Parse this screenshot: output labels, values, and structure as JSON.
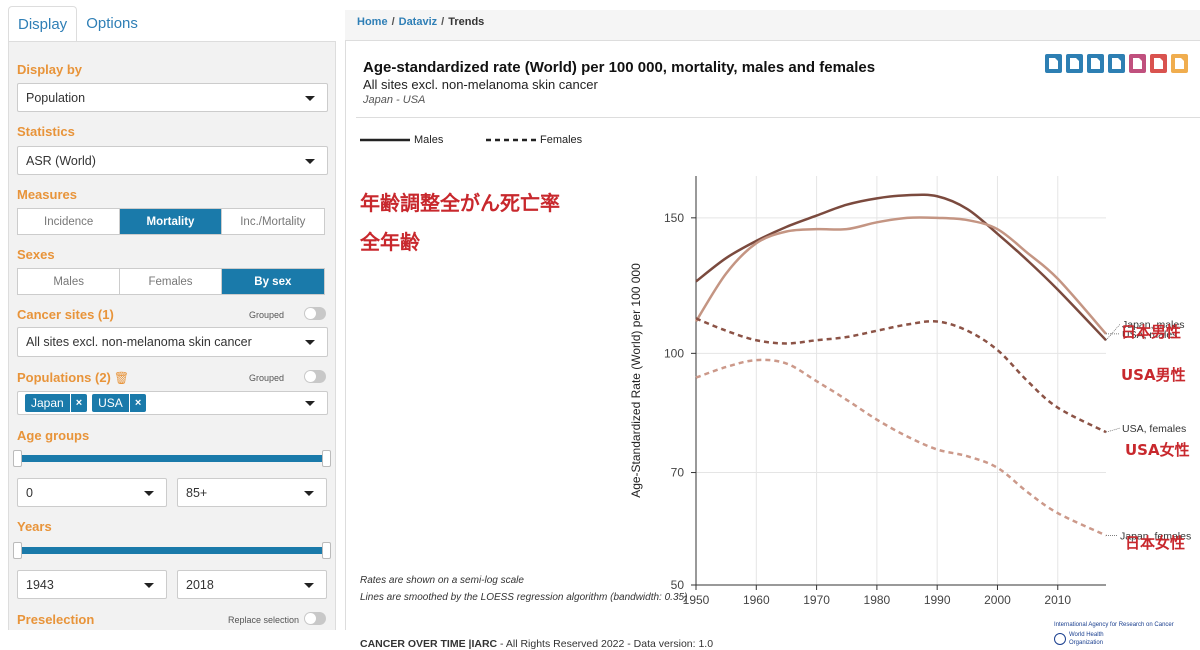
{
  "tabs": [
    {
      "label": "Display"
    },
    {
      "label": "Options"
    }
  ],
  "sidebar": {
    "display_by": {
      "label": "Display by",
      "value": "Population"
    },
    "statistics": {
      "label": "Statistics",
      "value": "ASR (World)"
    },
    "measures": {
      "label": "Measures",
      "options": [
        "Incidence",
        "Mortality",
        "Inc./Mortality"
      ],
      "selected": "Mortality"
    },
    "sexes": {
      "label": "Sexes",
      "options": [
        "Males",
        "Females",
        "By sex"
      ],
      "selected": "By sex"
    },
    "cancer_sites": {
      "label": "Cancer sites (1)",
      "grouped_label": "Grouped",
      "value": "All sites excl. non-melanoma skin cancer"
    },
    "populations": {
      "label": "Populations (2)",
      "grouped_label": "Grouped",
      "chips": [
        "Japan",
        "USA"
      ]
    },
    "age_groups": {
      "label": "Age groups",
      "from": "0",
      "to": "85+"
    },
    "years": {
      "label": "Years",
      "from": "1943",
      "to": "2018"
    },
    "preselection": {
      "label": "Preselection",
      "replace_label": "Replace selection"
    }
  },
  "breadcrumb": [
    "Home",
    "Dataviz",
    "Trends"
  ],
  "chart": {
    "title": "Age-standardized rate (World) per 100 000, mortality, males and females",
    "subtitle": "All sites excl. non-melanoma skin cancer",
    "region": "Japan - USA",
    "legend": [
      {
        "label": "Males",
        "style": "solid"
      },
      {
        "label": "Females",
        "style": "dashed"
      }
    ],
    "overlay_jp": [
      "年齢調整全がん死亡率",
      "全年齢"
    ],
    "annotations_jp": [
      "日本男性",
      "USA男性",
      "USA女性",
      "日本女性"
    ],
    "notes": [
      "Rates are shown on a semi-log scale",
      "Lines are smoothed by the LOESS regression algorithm (bandwidth: 0.35)"
    ],
    "footer_bold": "CANCER OVER TIME |IARC",
    "footer_rest": " - All Rights Reserved 2022 - Data version: 1.0",
    "iarc_label": "International Agency for Research on Cancer",
    "who_label": "World Health Organization",
    "icons": [
      {
        "name": "png-export-icon",
        "color": "#2d7fb3"
      },
      {
        "name": "pdf-export-icon",
        "color": "#2d7fb3"
      },
      {
        "name": "svg-export-icon",
        "color": "#2d7fb3"
      },
      {
        "name": "html5-export-icon",
        "color": "#2d7fb3"
      },
      {
        "name": "csv-export-icon",
        "color": "#c0507e"
      },
      {
        "name": "excel-export-icon",
        "color": "#d9534f"
      },
      {
        "name": "link-icon",
        "color": "#f0ad4e"
      }
    ]
  },
  "chart_data": {
    "type": "line",
    "ylabel": "Age-Standardized Rate (World) per 100 000",
    "y_scale": "log",
    "ylim": [
      50,
      170
    ],
    "yticks": [
      50,
      70,
      100,
      150
    ],
    "xlim": [
      1950,
      2018
    ],
    "xticks": [
      1950,
      1960,
      1970,
      1980,
      1990,
      2000,
      2010
    ],
    "grid": true,
    "series": [
      {
        "name": "Japan, males",
        "style": "solid",
        "color": "#7b4a3e",
        "x": [
          1950,
          1955,
          1960,
          1965,
          1970,
          1975,
          1980,
          1985,
          1990,
          1995,
          2000,
          2005,
          2010,
          2018
        ],
        "y": [
          124,
          133,
          140,
          146,
          151,
          156,
          159,
          160.5,
          160,
          154,
          143,
          132,
          121,
          104
        ]
      },
      {
        "name": "USA, males",
        "style": "solid",
        "color": "#c49583",
        "x": [
          1950,
          1955,
          1960,
          1965,
          1970,
          1975,
          1980,
          1985,
          1990,
          1995,
          2000,
          2005,
          2010,
          2018
        ],
        "y": [
          110,
          127,
          139,
          144,
          145,
          145,
          148,
          150,
          150,
          149,
          145,
          135,
          125,
          106
        ]
      },
      {
        "name": "USA, females",
        "style": "dashed",
        "color": "#8c5346",
        "x": [
          1950,
          1955,
          1960,
          1965,
          1970,
          1975,
          1980,
          1985,
          1990,
          1995,
          2000,
          2005,
          2010,
          2018
        ],
        "y": [
          111,
          107,
          104,
          103,
          104,
          105,
          107,
          109,
          110,
          107,
          101,
          92,
          85,
          79
        ]
      },
      {
        "name": "Japan, females",
        "style": "dashed",
        "color": "#cc998a",
        "x": [
          1950,
          1955,
          1960,
          1965,
          1970,
          1975,
          1980,
          1985,
          1990,
          1995,
          2000,
          2005,
          2010,
          2018
        ],
        "y": [
          93,
          96,
          98,
          97,
          92,
          87,
          82,
          78,
          75,
          73.5,
          71,
          66,
          62,
          58
        ]
      }
    ]
  }
}
